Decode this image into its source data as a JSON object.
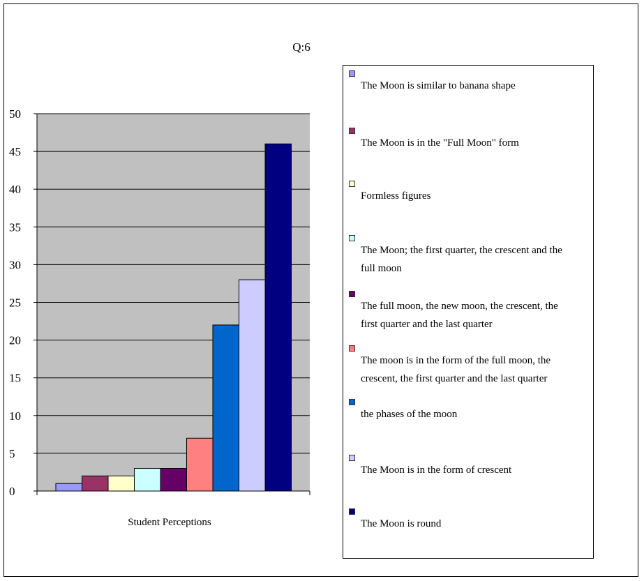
{
  "chart_data": {
    "type": "bar",
    "title": "Q:6",
    "xlabel": "Student Perceptions",
    "ylabel": "",
    "ylim": [
      0,
      50
    ],
    "yticks": [
      0,
      5,
      10,
      15,
      20,
      25,
      30,
      35,
      40,
      45,
      50
    ],
    "grid": true,
    "legend_position": "right",
    "plot_background": "#c0c0c0",
    "series": [
      {
        "name": "The Moon is similar to banana shape",
        "value": 1,
        "color": "#9999ff"
      },
      {
        "name": "The Moon is in the \"Full Moon\" form",
        "value": 2,
        "color": "#993366"
      },
      {
        "name": "Formless figures",
        "value": 2,
        "color": "#ffffcc"
      },
      {
        "name": "The Moon; the first quarter, the crescent and the full moon",
        "value": 3,
        "color": "#ccffff"
      },
      {
        "name": "The full moon, the new moon, the crescent, the first quarter and the last quarter",
        "value": 3,
        "color": "#660066"
      },
      {
        "name": "The moon is in the form of the full moon, the crescent, the first quarter and the last quarter",
        "value": 7,
        "color": "#ff8080"
      },
      {
        "name": "the phases of the moon",
        "value": 22,
        "color": "#0066cc"
      },
      {
        "name": "The Moon is in the form of crescent",
        "value": 28,
        "color": "#ccccff"
      },
      {
        "name": "The Moon is round",
        "value": 46,
        "color": "#000080"
      }
    ]
  }
}
